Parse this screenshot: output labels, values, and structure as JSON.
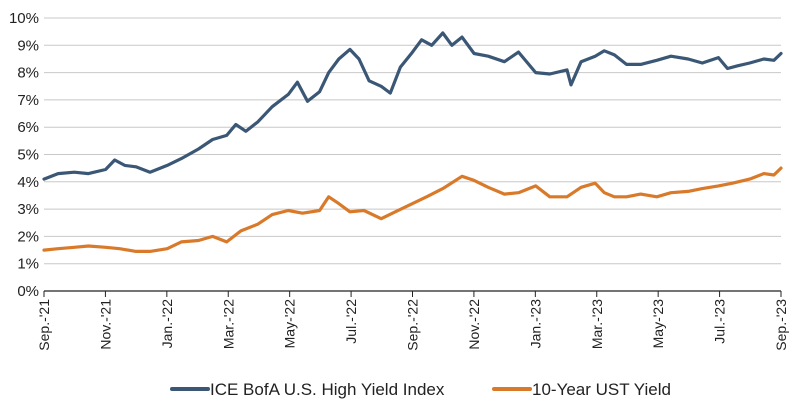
{
  "chart_data": {
    "type": "line",
    "title": "",
    "xlabel": "",
    "ylabel": "",
    "ylim": [
      0,
      10
    ],
    "yticks": [
      "0%",
      "1%",
      "2%",
      "3%",
      "4%",
      "5%",
      "6%",
      "7%",
      "8%",
      "9%",
      "10%"
    ],
    "xticks": [
      "Sep.-'21",
      "Nov.-'21",
      "Jan.-'22",
      "Mar.-'22",
      "May-'22",
      "Jul.-'22",
      "Sep.-'22",
      "Nov.-'22",
      "Jan.-'23",
      "Mar.-'23",
      "May-'23",
      "Jul.-'23",
      "Sep.-'23"
    ],
    "xlim": [
      "2021-09-01",
      "2023-09-01"
    ],
    "grid": "horizontal",
    "legend_position": "bottom",
    "series": [
      {
        "name": "ICE BofA U.S. High Yield Index",
        "color": "#3b5776",
        "points": [
          [
            "2021-09-01",
            4.1
          ],
          [
            "2021-09-15",
            4.3
          ],
          [
            "2021-10-01",
            4.35
          ],
          [
            "2021-10-15",
            4.3
          ],
          [
            "2021-11-01",
            4.45
          ],
          [
            "2021-11-10",
            4.8
          ],
          [
            "2021-11-20",
            4.6
          ],
          [
            "2021-12-01",
            4.55
          ],
          [
            "2021-12-15",
            4.35
          ],
          [
            "2022-01-01",
            4.6
          ],
          [
            "2022-01-15",
            4.85
          ],
          [
            "2022-02-01",
            5.2
          ],
          [
            "2022-02-15",
            5.55
          ],
          [
            "2022-03-01",
            5.7
          ],
          [
            "2022-03-10",
            6.1
          ],
          [
            "2022-03-20",
            5.85
          ],
          [
            "2022-04-01",
            6.2
          ],
          [
            "2022-04-15",
            6.75
          ],
          [
            "2022-05-01",
            7.2
          ],
          [
            "2022-05-10",
            7.65
          ],
          [
            "2022-05-20",
            6.95
          ],
          [
            "2022-06-01",
            7.3
          ],
          [
            "2022-06-10",
            8.0
          ],
          [
            "2022-06-20",
            8.5
          ],
          [
            "2022-07-01",
            8.85
          ],
          [
            "2022-07-10",
            8.5
          ],
          [
            "2022-07-20",
            7.7
          ],
          [
            "2022-08-01",
            7.5
          ],
          [
            "2022-08-10",
            7.25
          ],
          [
            "2022-08-20",
            8.2
          ],
          [
            "2022-09-01",
            8.75
          ],
          [
            "2022-09-10",
            9.2
          ],
          [
            "2022-09-20",
            9.0
          ],
          [
            "2022-10-01",
            9.45
          ],
          [
            "2022-10-10",
            9.0
          ],
          [
            "2022-10-20",
            9.3
          ],
          [
            "2022-11-01",
            8.7
          ],
          [
            "2022-11-15",
            8.6
          ],
          [
            "2022-12-01",
            8.4
          ],
          [
            "2022-12-15",
            8.75
          ],
          [
            "2023-01-01",
            8.0
          ],
          [
            "2023-01-15",
            7.95
          ],
          [
            "2023-02-01",
            8.1
          ],
          [
            "2023-02-05",
            7.55
          ],
          [
            "2023-02-15",
            8.4
          ],
          [
            "2023-03-01",
            8.6
          ],
          [
            "2023-03-10",
            8.8
          ],
          [
            "2023-03-20",
            8.65
          ],
          [
            "2023-04-01",
            8.3
          ],
          [
            "2023-04-15",
            8.3
          ],
          [
            "2023-05-01",
            8.45
          ],
          [
            "2023-05-15",
            8.6
          ],
          [
            "2023-06-01",
            8.5
          ],
          [
            "2023-06-15",
            8.35
          ],
          [
            "2023-07-01",
            8.55
          ],
          [
            "2023-07-10",
            8.15
          ],
          [
            "2023-07-20",
            8.25
          ],
          [
            "2023-08-01",
            8.35
          ],
          [
            "2023-08-15",
            8.5
          ],
          [
            "2023-08-25",
            8.45
          ],
          [
            "2023-09-01",
            8.7
          ]
        ]
      },
      {
        "name": "10-Year UST Yield",
        "color": "#d97a2b",
        "points": [
          [
            "2021-09-01",
            1.5
          ],
          [
            "2021-09-15",
            1.55
          ],
          [
            "2021-10-01",
            1.6
          ],
          [
            "2021-10-15",
            1.65
          ],
          [
            "2021-11-01",
            1.6
          ],
          [
            "2021-11-15",
            1.55
          ],
          [
            "2021-12-01",
            1.45
          ],
          [
            "2021-12-15",
            1.45
          ],
          [
            "2022-01-01",
            1.55
          ],
          [
            "2022-01-15",
            1.8
          ],
          [
            "2022-02-01",
            1.85
          ],
          [
            "2022-02-15",
            2.0
          ],
          [
            "2022-03-01",
            1.8
          ],
          [
            "2022-03-15",
            2.2
          ],
          [
            "2022-04-01",
            2.45
          ],
          [
            "2022-04-15",
            2.8
          ],
          [
            "2022-05-01",
            2.95
          ],
          [
            "2022-05-15",
            2.85
          ],
          [
            "2022-06-01",
            2.95
          ],
          [
            "2022-06-10",
            3.45
          ],
          [
            "2022-06-20",
            3.2
          ],
          [
            "2022-07-01",
            2.9
          ],
          [
            "2022-07-15",
            2.95
          ],
          [
            "2022-08-01",
            2.65
          ],
          [
            "2022-08-15",
            2.9
          ],
          [
            "2022-09-01",
            3.2
          ],
          [
            "2022-09-15",
            3.45
          ],
          [
            "2022-10-01",
            3.75
          ],
          [
            "2022-10-20",
            4.2
          ],
          [
            "2022-11-01",
            4.05
          ],
          [
            "2022-11-15",
            3.8
          ],
          [
            "2022-12-01",
            3.55
          ],
          [
            "2022-12-15",
            3.6
          ],
          [
            "2023-01-01",
            3.85
          ],
          [
            "2023-01-15",
            3.45
          ],
          [
            "2023-02-01",
            3.45
          ],
          [
            "2023-02-15",
            3.8
          ],
          [
            "2023-03-01",
            3.95
          ],
          [
            "2023-03-10",
            3.6
          ],
          [
            "2023-03-20",
            3.45
          ],
          [
            "2023-04-01",
            3.45
          ],
          [
            "2023-04-15",
            3.55
          ],
          [
            "2023-05-01",
            3.45
          ],
          [
            "2023-05-15",
            3.6
          ],
          [
            "2023-06-01",
            3.65
          ],
          [
            "2023-06-15",
            3.75
          ],
          [
            "2023-07-01",
            3.85
          ],
          [
            "2023-07-15",
            3.95
          ],
          [
            "2023-08-01",
            4.1
          ],
          [
            "2023-08-15",
            4.3
          ],
          [
            "2023-08-25",
            4.25
          ],
          [
            "2023-09-01",
            4.5
          ]
        ]
      }
    ]
  }
}
